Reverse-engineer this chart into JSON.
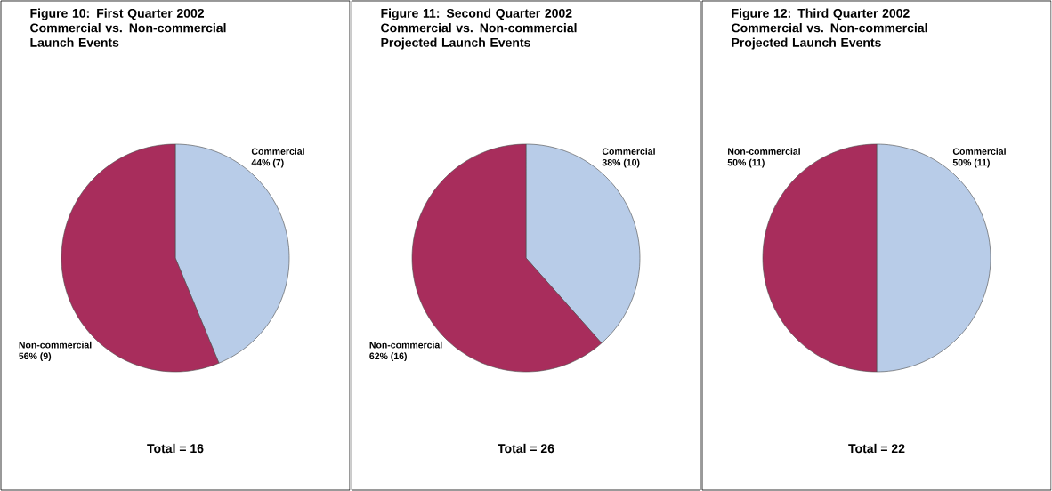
{
  "chart_data": [
    {
      "type": "pie",
      "title": "Figure 10: First Quarter 2002 Commercial vs. Non-commercial Launch Events",
      "categories": [
        "Commercial",
        "Non-commercial"
      ],
      "values": [
        7,
        9
      ],
      "colors": [
        "#b8cce8",
        "#a82d5c"
      ],
      "value_labels": [
        "44% (7)",
        "56% (9)"
      ],
      "annotations": [
        "Total = 16"
      ]
    },
    {
      "type": "pie",
      "title": "Figure 11: Second Quarter 2002 Commercial vs. Non-commercial Projected Launch Events",
      "categories": [
        "Commercial",
        "Non-commercial"
      ],
      "values": [
        10,
        16
      ],
      "colors": [
        "#b8cce8",
        "#a82d5c"
      ],
      "value_labels": [
        "38% (10)",
        "62% (16)"
      ],
      "annotations": [
        "Total = 26"
      ]
    },
    {
      "type": "pie",
      "title": "Figure 12: Third Quarter 2002 Commercial vs. Non-commercial Projected Launch Events",
      "categories": [
        "Commercial",
        "Non-commercial"
      ],
      "values": [
        11,
        11
      ],
      "colors": [
        "#b8cce8",
        "#a82d5c"
      ],
      "value_labels": [
        "50% (11)",
        "50% (11)"
      ],
      "annotations": [
        "Total = 22"
      ]
    }
  ]
}
